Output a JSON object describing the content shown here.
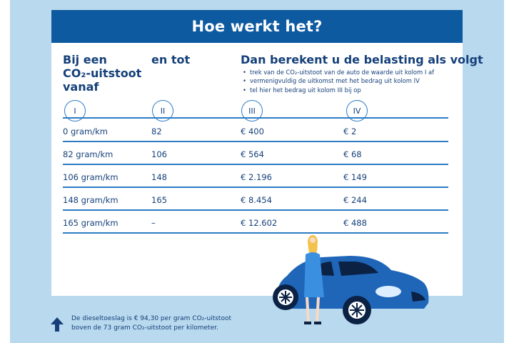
{
  "title": "Hoe werkt het?",
  "columns": {
    "col1_lines": [
      "Bij een",
      "CO₂-uitstoot",
      "vanaf"
    ],
    "col2": "en tot",
    "col3": "Dan berekent u de belasting als volgt"
  },
  "instructions": [
    "trek van de CO₂-uitstoot van de auto de waarde uit kolom I af",
    "vermenigvuldig de uitkomst met het bedrag uit kolom IV",
    "tel hier het bedrag uit kolom III bij op"
  ],
  "column_numbers": [
    "I",
    "II",
    "III",
    "IV"
  ],
  "rows": [
    [
      "0 gram/km",
      "82",
      "€ 400",
      "€ 2"
    ],
    [
      "82 gram/km",
      "106",
      "€ 564",
      "€ 68"
    ],
    [
      "106 gram/km",
      "148",
      "€ 2.196",
      "€ 149"
    ],
    [
      "148 gram/km",
      "165",
      "€ 8.454",
      "€ 244"
    ],
    [
      "165 gram/km",
      "–",
      "€ 12.602",
      "€ 488"
    ]
  ],
  "footnote": {
    "line1": "De dieseltoeslag is € 94,30 per gram CO₂-uitstoot",
    "line2": "boven de 73 gram CO₂-uitstoot per kilometer."
  },
  "icons": [
    "arrow-up-icon",
    "car-illustration",
    "person-illustration"
  ],
  "colors": {
    "header_bg": "#0e5aa0",
    "frame_bg": "#b9d9ee",
    "text": "#15407a",
    "line": "#2c7cc4",
    "car": "#1f66b8"
  }
}
